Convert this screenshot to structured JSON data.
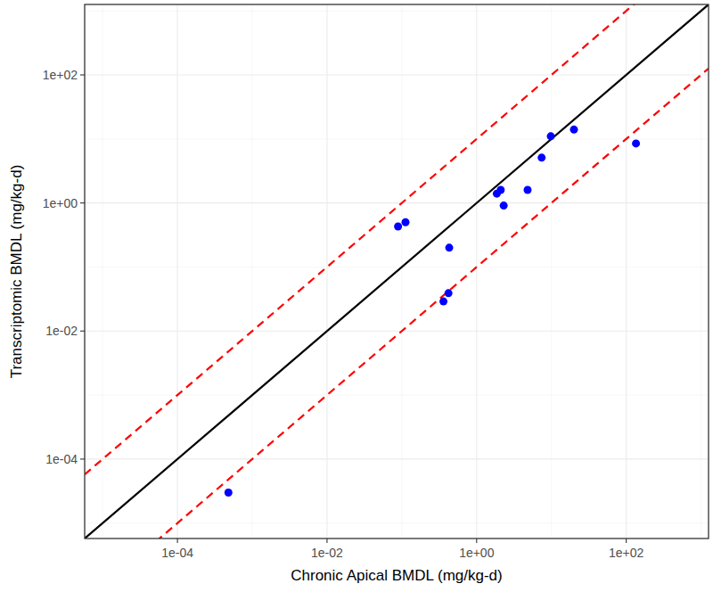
{
  "chart_data": {
    "type": "scatter",
    "x_label": "Chronic Apical BMDL (mg/kg-d)",
    "y_label": "Transcriptomic BMDL (mg/kg-d)",
    "log": true,
    "grid": true,
    "color": "#0000ff",
    "marker": "circle",
    "x": [
      0.089,
      0.112,
      0.43,
      0.42,
      0.36,
      1.86,
      2.1,
      2.3,
      4.8,
      7.4,
      9.8,
      20,
      135,
      0.00048
    ],
    "values": [
      0.43,
      0.5,
      0.2,
      0.039,
      0.029,
      1.4,
      1.6,
      0.91,
      1.6,
      5.1,
      11,
      14,
      8.5,
      3e-05
    ],
    "xlim": [
      5.75e-06,
      1260
    ],
    "ylim": [
      5.75e-06,
      1260
    ],
    "xticks": [
      {
        "value": 0.0001,
        "label": "1e-04"
      },
      {
        "value": 0.01,
        "label": "1e-02"
      },
      {
        "value": 1,
        "label": "1e+00"
      },
      {
        "value": 100,
        "label": "1e+02"
      }
    ],
    "yticks": [
      {
        "value": 0.0001,
        "label": "1e-04"
      },
      {
        "value": 0.01,
        "label": "1e-02"
      },
      {
        "value": 1,
        "label": "1e+00"
      },
      {
        "value": 100,
        "label": "1e+02"
      }
    ],
    "reference_lines": [
      {
        "ratio": 1,
        "color": "#000000",
        "line_style": "solid"
      },
      {
        "ratio": 10,
        "color": "#ff0000",
        "line_style": "dashed"
      },
      {
        "ratio": 0.1,
        "color": "#ff0000",
        "line_style": "dashed"
      }
    ]
  }
}
